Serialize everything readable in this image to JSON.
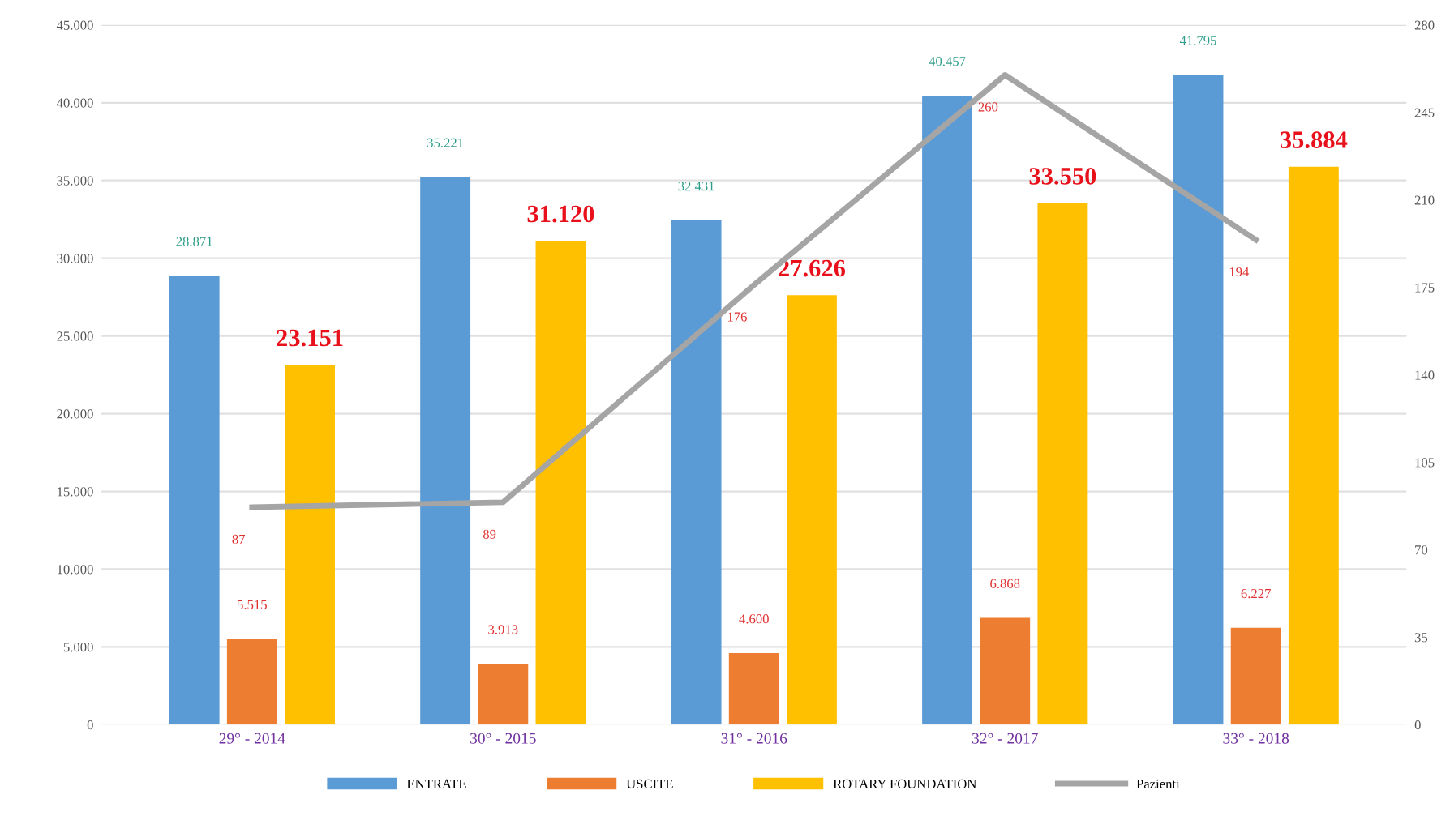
{
  "chart_data": {
    "type": "bar",
    "categories": [
      "29° - 2014",
      "30° - 2015",
      "31° - 2016",
      "32° - 2017",
      "33° - 2018"
    ],
    "series": [
      {
        "name": "ENTRATE",
        "color": "#5b9bd5",
        "values": [
          28871,
          35221,
          32431,
          40457,
          41795
        ],
        "value_labels": [
          "28.871",
          "35.221",
          "32.431",
          "40.457",
          "41.795"
        ]
      },
      {
        "name": "USCITE",
        "color": "#ed7d31",
        "values": [
          5515,
          3913,
          4600,
          6868,
          6227
        ],
        "value_labels": [
          "5.515",
          "3.913",
          "4.600",
          "6.868",
          "6.227"
        ]
      },
      {
        "name": "ROTARY FOUNDATION",
        "color": "#ffc000",
        "values": [
          23151,
          31120,
          27626,
          33550,
          35884
        ],
        "value_labels": [
          "23.151",
          "31.120",
          "27.626",
          "33.550",
          "35.884"
        ]
      },
      {
        "name": "Pazienti",
        "type": "line",
        "axis": "y2",
        "color": "#a5a5a5",
        "values": [
          87,
          89,
          176,
          260,
          194
        ],
        "value_labels": [
          "87",
          "89",
          "176",
          "260",
          "194"
        ]
      }
    ],
    "ylim": [
      0,
      45000
    ],
    "yticks": [
      0,
      {
        "value": 5000,
        "label": "5.000"
      },
      {
        "value": 10000,
        "label": "10.000"
      },
      {
        "value": 15000,
        "label": "15.000"
      },
      {
        "value": 20000,
        "label": "20.000"
      },
      {
        "value": 25000,
        "label": "25.000"
      },
      {
        "value": 30000,
        "label": "30.000"
      },
      {
        "value": 35000,
        "label": "35.000"
      },
      {
        "value": 40000,
        "label": "40.000"
      },
      {
        "value": 45000,
        "label": "45.000"
      }
    ],
    "y2lim": [
      0,
      280
    ],
    "y2ticks": [
      0,
      35,
      70,
      105,
      140,
      175,
      210,
      245,
      280
    ],
    "grid": "y",
    "legend": "bottom",
    "marker": "none",
    "line_style": "solid"
  }
}
